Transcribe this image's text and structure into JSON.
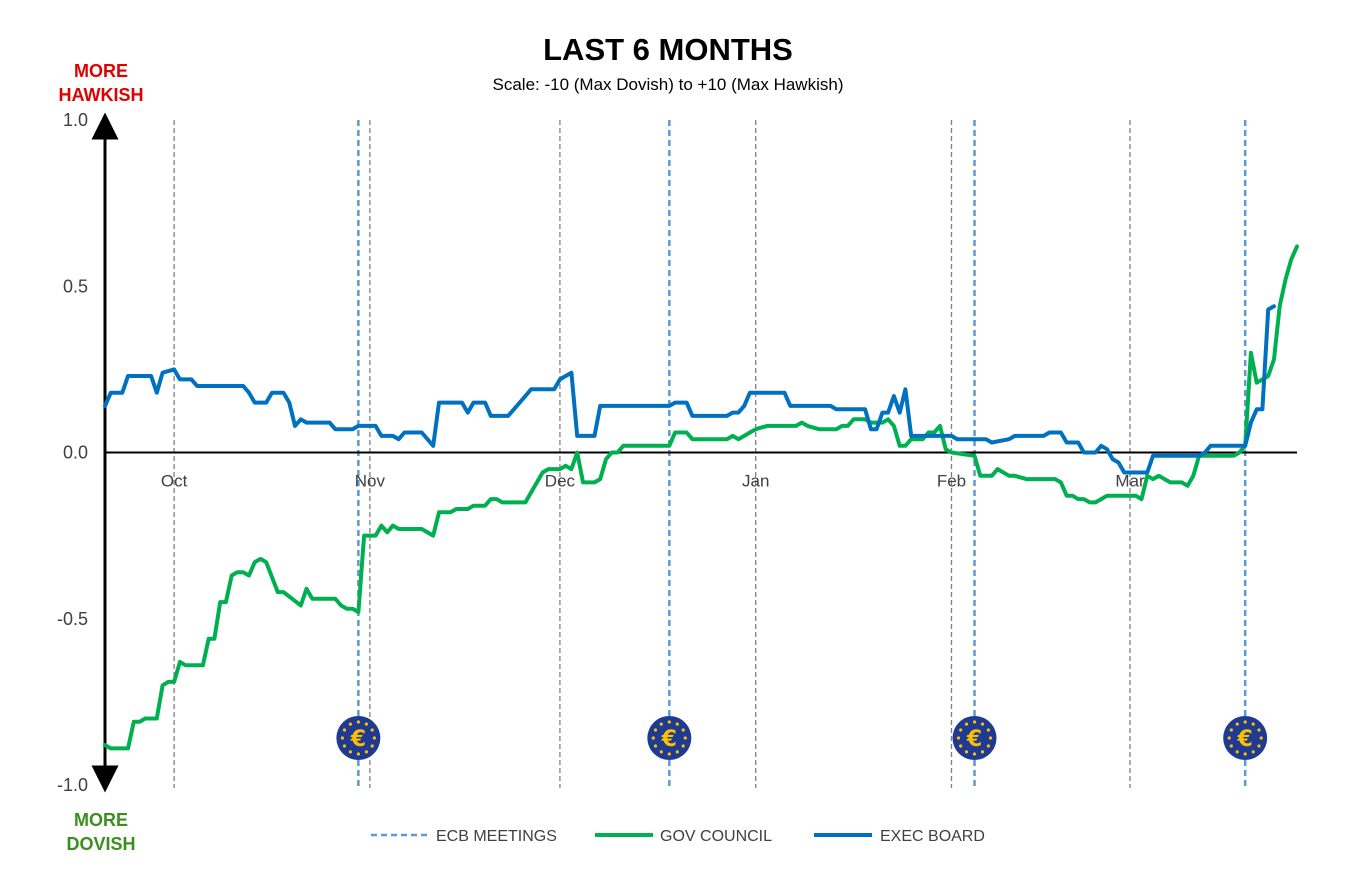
{
  "chart_data": {
    "type": "line",
    "title": "LAST 6 MONTHS",
    "subtitle": "Scale: -10 (Max Dovish)  to +10 (Max Hawkish)",
    "top_label": [
      "MORE",
      "HAWKISH"
    ],
    "bottom_label": [
      "MORE",
      "DOVISH"
    ],
    "ylim": [
      -1.0,
      1.0
    ],
    "yticks": [
      "1.0",
      "0.5",
      "0.0",
      "-0.5",
      "-1.0"
    ],
    "ytick_values": [
      1.0,
      0.5,
      0.0,
      -0.5,
      -1.0
    ],
    "x_range_days": [
      0,
      207
    ],
    "month_labels": [
      {
        "label": "Oct",
        "day": 12
      },
      {
        "label": "Nov",
        "day": 46
      },
      {
        "label": "Dec",
        "day": 79
      },
      {
        "label": "Jan",
        "day": 113
      },
      {
        "label": "Feb",
        "day": 147
      },
      {
        "label": "Mar",
        "day": 178
      }
    ],
    "month_gridlines": [
      12,
      46,
      79,
      113,
      147,
      178
    ],
    "ecb_meetings": [
      44,
      98,
      151,
      198
    ],
    "legend": [
      "ECB MEETINGS",
      "GOV COUNCIL",
      "EXEC BOARD"
    ],
    "colors": {
      "gov_council": "#00B050",
      "exec_board": "#0070C0",
      "ecb_meeting": "#5B9BD5",
      "gridline": "#7F7F7F",
      "hawkish": "#E00000",
      "dovish": "#3A8F1E",
      "euro_badge": "#1F3A93",
      "euro_symbol": "#FFC000"
    },
    "series": [
      {
        "name": "GOV COUNCIL",
        "points": [
          [
            0,
            -0.88
          ],
          [
            1,
            -0.89
          ],
          [
            4,
            -0.89
          ],
          [
            5,
            -0.81
          ],
          [
            6,
            -0.81
          ],
          [
            7,
            -0.8
          ],
          [
            9,
            -0.8
          ],
          [
            10,
            -0.7
          ],
          [
            11,
            -0.69
          ],
          [
            12,
            -0.69
          ],
          [
            13,
            -0.63
          ],
          [
            14,
            -0.64
          ],
          [
            17,
            -0.64
          ],
          [
            18,
            -0.56
          ],
          [
            19,
            -0.56
          ],
          [
            20,
            -0.45
          ],
          [
            21,
            -0.45
          ],
          [
            22,
            -0.37
          ],
          [
            23,
            -0.36
          ],
          [
            24,
            -0.36
          ],
          [
            25,
            -0.37
          ],
          [
            26,
            -0.33
          ],
          [
            27,
            -0.32
          ],
          [
            28,
            -0.33
          ],
          [
            30,
            -0.42
          ],
          [
            31,
            -0.42
          ],
          [
            34,
            -0.46
          ],
          [
            35,
            -0.41
          ],
          [
            36,
            -0.44
          ],
          [
            40,
            -0.44
          ],
          [
            41,
            -0.46
          ],
          [
            42,
            -0.47
          ],
          [
            43,
            -0.47
          ],
          [
            44,
            -0.48
          ],
          [
            45,
            -0.25
          ],
          [
            47,
            -0.25
          ],
          [
            48,
            -0.22
          ],
          [
            49,
            -0.24
          ],
          [
            50,
            -0.22
          ],
          [
            51,
            -0.23
          ],
          [
            55,
            -0.23
          ],
          [
            57,
            -0.25
          ],
          [
            58,
            -0.18
          ],
          [
            59,
            -0.18
          ],
          [
            60,
            -0.18
          ],
          [
            61,
            -0.17
          ],
          [
            63,
            -0.17
          ],
          [
            64,
            -0.16
          ],
          [
            66,
            -0.16
          ],
          [
            67,
            -0.14
          ],
          [
            68,
            -0.14
          ],
          [
            69,
            -0.15
          ],
          [
            72,
            -0.15
          ],
          [
            73,
            -0.15
          ],
          [
            74,
            -0.12
          ],
          [
            75,
            -0.09
          ],
          [
            76,
            -0.06
          ],
          [
            77,
            -0.05
          ],
          [
            79,
            -0.05
          ],
          [
            80,
            -0.04
          ],
          [
            81,
            -0.05
          ],
          [
            82,
            0.0
          ],
          [
            83,
            -0.09
          ],
          [
            85,
            -0.09
          ],
          [
            86,
            -0.08
          ],
          [
            87,
            -0.02
          ],
          [
            88,
            0.0
          ],
          [
            89,
            0.0
          ],
          [
            90,
            0.02
          ],
          [
            97,
            0.02
          ],
          [
            98,
            0.02
          ],
          [
            99,
            0.06
          ],
          [
            101,
            0.06
          ],
          [
            102,
            0.04
          ],
          [
            108,
            0.04
          ],
          [
            109,
            0.05
          ],
          [
            110,
            0.04
          ],
          [
            111,
            0.05
          ],
          [
            112,
            0.06
          ],
          [
            113,
            0.07
          ],
          [
            115,
            0.08
          ],
          [
            120,
            0.08
          ],
          [
            121,
            0.09
          ],
          [
            122,
            0.08
          ],
          [
            124,
            0.07
          ],
          [
            127,
            0.07
          ],
          [
            128,
            0.08
          ],
          [
            129,
            0.08
          ],
          [
            130,
            0.1
          ],
          [
            132,
            0.1
          ],
          [
            133,
            0.09
          ],
          [
            135,
            0.09
          ],
          [
            136,
            0.1
          ],
          [
            137,
            0.08
          ],
          [
            138,
            0.02
          ],
          [
            139,
            0.02
          ],
          [
            140,
            0.04
          ],
          [
            142,
            0.04
          ],
          [
            143,
            0.06
          ],
          [
            144,
            0.06
          ],
          [
            145,
            0.08
          ],
          [
            146,
            0.01
          ],
          [
            147,
            0.0
          ],
          [
            151,
            -0.01
          ],
          [
            152,
            -0.07
          ],
          [
            154,
            -0.07
          ],
          [
            155,
            -0.05
          ],
          [
            157,
            -0.07
          ],
          [
            158,
            -0.07
          ],
          [
            160,
            -0.08
          ],
          [
            165,
            -0.08
          ],
          [
            166,
            -0.09
          ],
          [
            167,
            -0.13
          ],
          [
            168,
            -0.13
          ],
          [
            169,
            -0.14
          ],
          [
            170,
            -0.14
          ],
          [
            171,
            -0.15
          ],
          [
            172,
            -0.15
          ],
          [
            173,
            -0.14
          ],
          [
            174,
            -0.13
          ],
          [
            175,
            -0.13
          ],
          [
            179,
            -0.13
          ],
          [
            180,
            -0.14
          ],
          [
            181,
            -0.07
          ],
          [
            182,
            -0.08
          ],
          [
            183,
            -0.07
          ],
          [
            184,
            -0.08
          ],
          [
            185,
            -0.09
          ],
          [
            187,
            -0.09
          ],
          [
            188,
            -0.1
          ],
          [
            189,
            -0.07
          ],
          [
            190,
            -0.01
          ],
          [
            191,
            -0.01
          ],
          [
            192,
            -0.01
          ],
          [
            196,
            -0.01
          ],
          [
            197,
            0.0
          ],
          [
            198,
            0.02
          ],
          [
            199,
            0.3
          ],
          [
            200,
            0.21
          ],
          [
            201,
            0.22
          ],
          [
            202,
            0.23
          ],
          [
            203,
            0.28
          ],
          [
            204,
            0.44
          ],
          [
            205,
            0.52
          ],
          [
            206,
            0.58
          ],
          [
            207,
            0.62
          ]
        ]
      },
      {
        "name": "EXEC BOARD",
        "points": [
          [
            0,
            0.14
          ],
          [
            1,
            0.18
          ],
          [
            3,
            0.18
          ],
          [
            4,
            0.23
          ],
          [
            8,
            0.23
          ],
          [
            9,
            0.18
          ],
          [
            10,
            0.24
          ],
          [
            12,
            0.25
          ],
          [
            13,
            0.22
          ],
          [
            15,
            0.22
          ],
          [
            16,
            0.2
          ],
          [
            24,
            0.2
          ],
          [
            25,
            0.18
          ],
          [
            26,
            0.15
          ],
          [
            28,
            0.15
          ],
          [
            29,
            0.18
          ],
          [
            31,
            0.18
          ],
          [
            32,
            0.15
          ],
          [
            33,
            0.08
          ],
          [
            34,
            0.1
          ],
          [
            35,
            0.09
          ],
          [
            39,
            0.09
          ],
          [
            40,
            0.07
          ],
          [
            42,
            0.07
          ],
          [
            43,
            0.07
          ],
          [
            44,
            0.08
          ],
          [
            47,
            0.08
          ],
          [
            48,
            0.05
          ],
          [
            50,
            0.05
          ],
          [
            51,
            0.04
          ],
          [
            52,
            0.06
          ],
          [
            55,
            0.06
          ],
          [
            57,
            0.02
          ],
          [
            58,
            0.15
          ],
          [
            62,
            0.15
          ],
          [
            63,
            0.12
          ],
          [
            64,
            0.15
          ],
          [
            66,
            0.15
          ],
          [
            67,
            0.11
          ],
          [
            70,
            0.11
          ],
          [
            71,
            0.13
          ],
          [
            73,
            0.17
          ],
          [
            74,
            0.19
          ],
          [
            78,
            0.19
          ],
          [
            79,
            0.22
          ],
          [
            80,
            0.23
          ],
          [
            81,
            0.24
          ],
          [
            82,
            0.05
          ],
          [
            85,
            0.05
          ],
          [
            86,
            0.14
          ],
          [
            98,
            0.14
          ],
          [
            99,
            0.15
          ],
          [
            101,
            0.15
          ],
          [
            102,
            0.11
          ],
          [
            108,
            0.11
          ],
          [
            109,
            0.12
          ],
          [
            110,
            0.12
          ],
          [
            111,
            0.14
          ],
          [
            112,
            0.18
          ],
          [
            118,
            0.18
          ],
          [
            119,
            0.14
          ],
          [
            126,
            0.14
          ],
          [
            127,
            0.13
          ],
          [
            132,
            0.13
          ],
          [
            133,
            0.07
          ],
          [
            134,
            0.07
          ],
          [
            135,
            0.12
          ],
          [
            136,
            0.12
          ],
          [
            137,
            0.17
          ],
          [
            138,
            0.12
          ],
          [
            139,
            0.19
          ],
          [
            140,
            0.05
          ],
          [
            147,
            0.05
          ],
          [
            148,
            0.04
          ],
          [
            152,
            0.04
          ],
          [
            153,
            0.04
          ],
          [
            154,
            0.03
          ],
          [
            157,
            0.04
          ],
          [
            158,
            0.05
          ],
          [
            163,
            0.05
          ],
          [
            164,
            0.06
          ],
          [
            166,
            0.06
          ],
          [
            167,
            0.03
          ],
          [
            169,
            0.03
          ],
          [
            170,
            0.0
          ],
          [
            172,
            0.0
          ],
          [
            173,
            0.02
          ],
          [
            174,
            0.01
          ],
          [
            175,
            -0.02
          ],
          [
            176,
            -0.03
          ],
          [
            177,
            -0.06
          ],
          [
            181,
            -0.06
          ],
          [
            182,
            -0.01
          ],
          [
            190,
            -0.01
          ],
          [
            191,
            0.0
          ],
          [
            192,
            0.02
          ],
          [
            196,
            0.02
          ],
          [
            197,
            0.02
          ],
          [
            198,
            0.02
          ],
          [
            199,
            0.09
          ],
          [
            200,
            0.13
          ],
          [
            201,
            0.13
          ],
          [
            202,
            0.43
          ],
          [
            203,
            0.44
          ]
        ]
      }
    ]
  }
}
